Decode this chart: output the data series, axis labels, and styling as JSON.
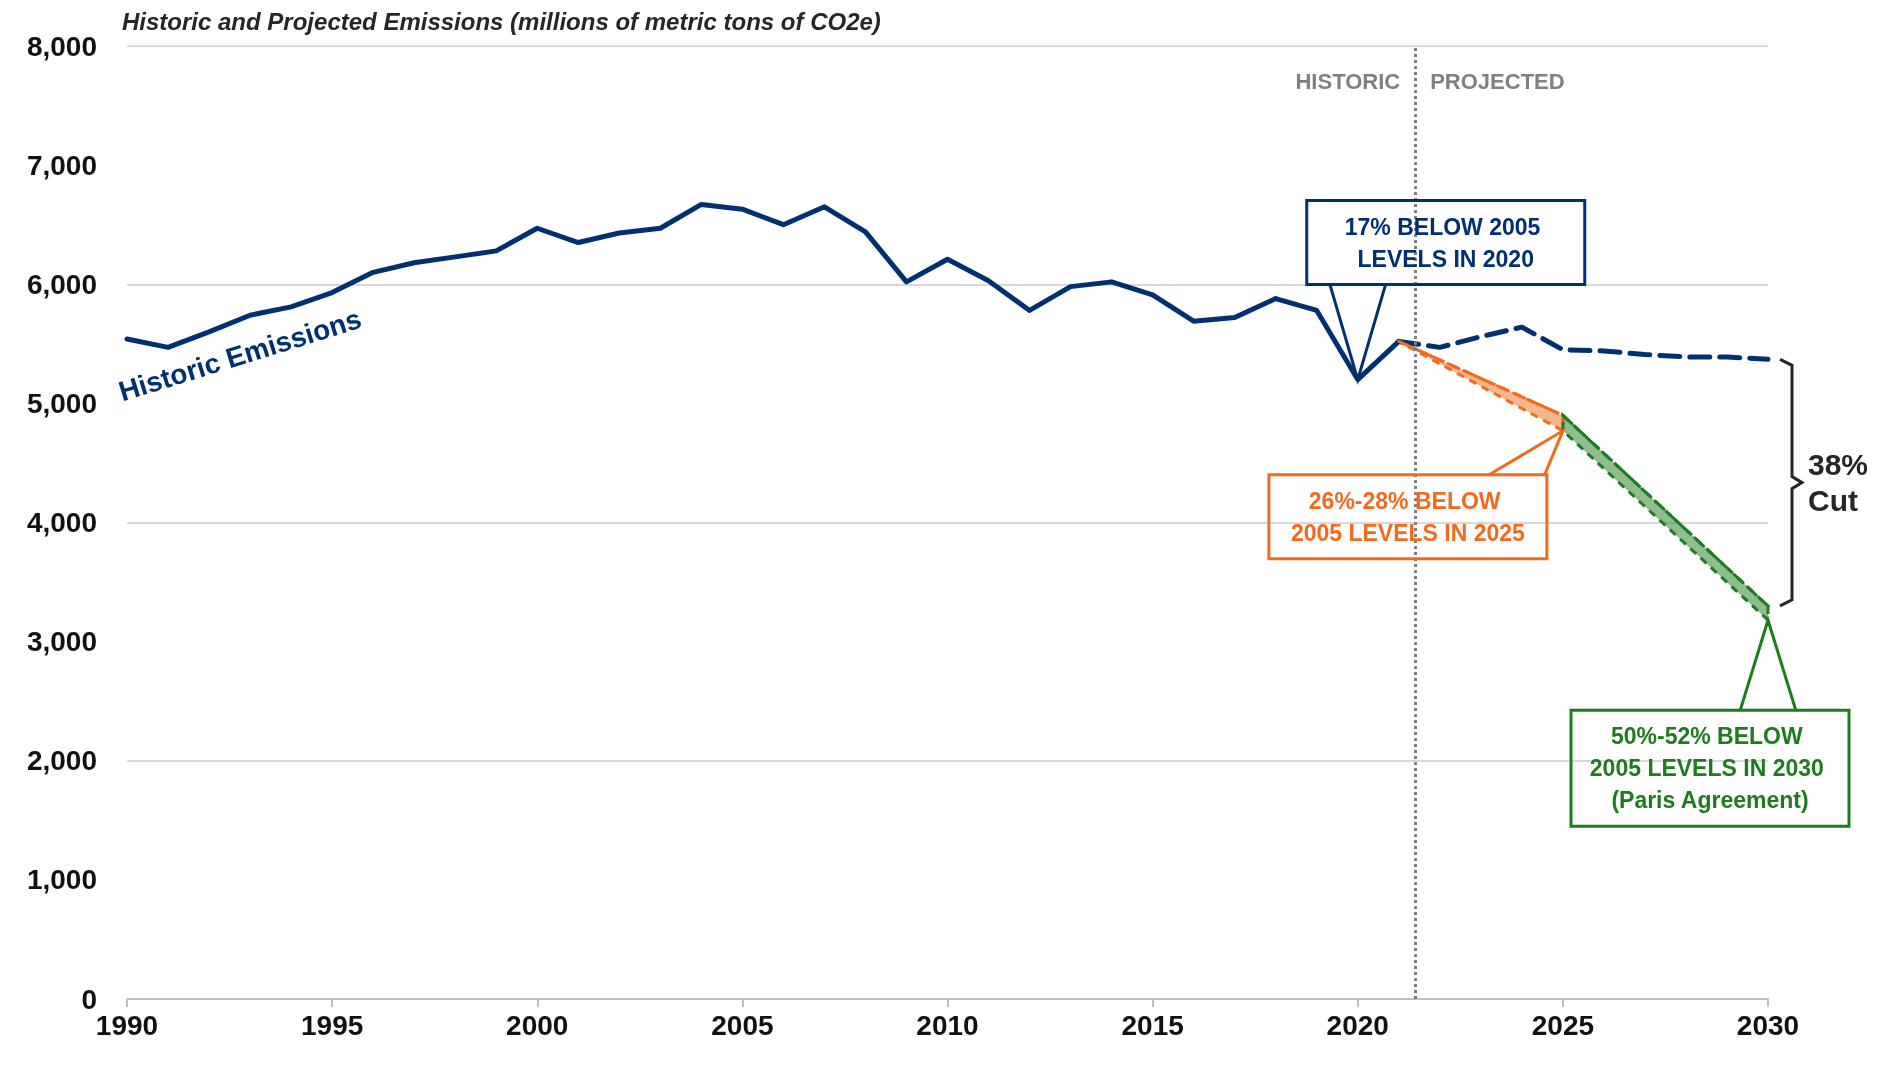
{
  "chart_data": {
    "type": "line",
    "title": "Historic and Projected Emissions (millions of metric tons of CO2e)",
    "xlim": [
      1990,
      2030
    ],
    "xticks": [
      1990,
      1995,
      2000,
      2005,
      2010,
      2015,
      2020,
      2025,
      2030
    ],
    "ylim": [
      0,
      8000
    ],
    "yticks": [
      0,
      {
        "value": 1000,
        "label": "1,000"
      },
      {
        "value": 2000,
        "label": "2,000"
      },
      {
        "value": 3000,
        "label": "3,000"
      },
      {
        "value": 4000,
        "label": "4,000"
      },
      {
        "value": 5000,
        "label": "5,000"
      },
      {
        "value": 6000,
        "label": "6,000"
      },
      {
        "value": 7000,
        "label": "7,000"
      },
      {
        "value": 8000,
        "label": "8,000"
      }
    ],
    "grid": "y",
    "legend": false,
    "marker": "none",
    "series": [
      {
        "name": "Historic Emissions",
        "color": "#003070",
        "line_style": "solid",
        "x": [
          1990,
          1991,
          1992,
          1993,
          1994,
          1995,
          1996,
          1997,
          1998,
          1999,
          2000,
          2001,
          2002,
          2003,
          2004,
          2005,
          2006,
          2007,
          2008,
          2009,
          2010,
          2011,
          2012,
          2013,
          2014,
          2015,
          2016,
          2017,
          2018,
          2019,
          2020,
          2021
        ],
        "values": [
          5540,
          5470,
          5600,
          5740,
          5810,
          5930,
          6100,
          6180,
          6230,
          6280,
          6470,
          6350,
          6430,
          6470,
          6670,
          6630,
          6500,
          6650,
          6440,
          6020,
          6210,
          6030,
          5780,
          5980,
          6020,
          5910,
          5690,
          5720,
          5880,
          5780,
          5200,
          5520
        ]
      },
      {
        "color": "#003070",
        "line_style": "dashed",
        "x": [
          2021,
          2022,
          2023,
          2024,
          2025,
          2026,
          2027,
          2028,
          2029,
          2030
        ],
        "values": [
          5520,
          5470,
          5560,
          5640,
          5450,
          5440,
          5410,
          5390,
          5390,
          5370
        ]
      },
      {
        "color": "#f26b1d",
        "line_style": "dashed",
        "x": [
          2021,
          2025
        ],
        "values": [
          5520,
          4900
        ],
        "lower": [
          5520,
          4770
        ],
        "upper": [
          5520,
          4900
        ]
      },
      {
        "color": "#1e7b1e",
        "line_style": "dashed",
        "x": [
          2025,
          2030
        ],
        "values": [
          4900,
          3300
        ],
        "lower": [
          4770,
          3180
        ],
        "upper": [
          4900,
          3300
        ]
      }
    ],
    "ref_lines": [
      {
        "axis": "x",
        "value": 2021.4,
        "label": "HISTORIC",
        "color": "#808080",
        "line_style": "dotted"
      }
    ],
    "annotations": [
      "17% BELOW 2005 LEVELS IN 2020",
      "26%-28% BELOW 2005 LEVELS IN 2025",
      "50%-52% BELOW 2005 LEVELS IN 2030 (Paris Agreement)",
      "PROJECTED",
      "38% Cut"
    ]
  }
}
